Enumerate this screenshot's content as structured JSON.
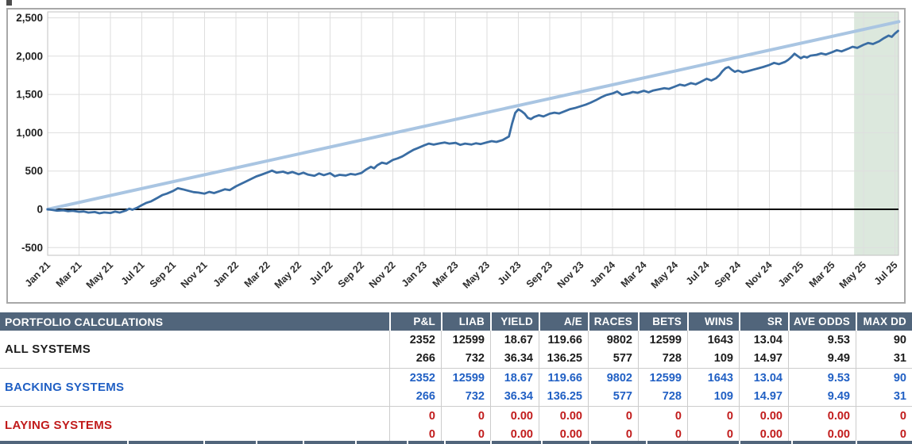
{
  "chart_data": {
    "type": "line",
    "title": "",
    "xlabel": "",
    "ylabel": "",
    "grid": true,
    "x_unit": "months since Jan 2021",
    "x_axis": {
      "tick_months": [
        0,
        2,
        4,
        6,
        8,
        10,
        12,
        14,
        16,
        18,
        20,
        22,
        24,
        26,
        28,
        30,
        32,
        34,
        36,
        38,
        40,
        42,
        44,
        46,
        48,
        50,
        52,
        54
      ],
      "tick_labels": [
        "Jan 21",
        "Mar 21",
        "May 21",
        "Jul 21",
        "Sep 21",
        "Nov 21",
        "Jan 22",
        "Mar 22",
        "May 22",
        "Jul 22",
        "Sep 22",
        "Nov 22",
        "Jan 23",
        "Mar 23",
        "May 23",
        "Jul 23",
        "Sep 23",
        "Nov 23",
        "Jan 24",
        "Mar 24",
        "May 24",
        "Jul 24",
        "Sep 24",
        "Nov 24",
        "Jan 25",
        "Mar 25",
        "May 25",
        "Jul 25"
      ]
    },
    "y_axis": {
      "tick_values": [
        2500,
        2000,
        1500,
        1000,
        500,
        0,
        -500
      ],
      "tick_labels": [
        "2,500",
        "2,000",
        "1,500",
        "1,000",
        "500",
        "0",
        "-500"
      ],
      "range_shown": [
        -620,
        2580
      ]
    },
    "zero_line_color": "#000000",
    "grid_color": "#dedede",
    "highlight_region": {
      "from_month": 51.4,
      "to_month": 54.25,
      "color": "#dce8dd"
    },
    "series": [
      {
        "name": "target-trend-line",
        "color": "#a9c5e2",
        "points": [
          [
            0,
            0
          ],
          [
            54.25,
            2450
          ]
        ]
      },
      {
        "name": "cumulative-pnl",
        "color": "#3a6da3",
        "points": [
          [
            0,
            0
          ],
          [
            0.3,
            -8
          ],
          [
            0.6,
            -18
          ],
          [
            1,
            -12
          ],
          [
            1.3,
            -25
          ],
          [
            1.6,
            -20
          ],
          [
            2,
            -32
          ],
          [
            2.3,
            -28
          ],
          [
            2.6,
            -42
          ],
          [
            3,
            -35
          ],
          [
            3.3,
            -52
          ],
          [
            3.6,
            -40
          ],
          [
            4,
            -48
          ],
          [
            4.3,
            -30
          ],
          [
            4.6,
            -42
          ],
          [
            5,
            -15
          ],
          [
            5.2,
            8
          ],
          [
            5.4,
            -5
          ],
          [
            5.7,
            20
          ],
          [
            6,
            55
          ],
          [
            6.3,
            85
          ],
          [
            6.6,
            105
          ],
          [
            7,
            150
          ],
          [
            7.3,
            185
          ],
          [
            7.6,
            205
          ],
          [
            8,
            240
          ],
          [
            8.3,
            275
          ],
          [
            8.6,
            262
          ],
          [
            9,
            240
          ],
          [
            9.3,
            225
          ],
          [
            9.6,
            218
          ],
          [
            10,
            205
          ],
          [
            10.3,
            228
          ],
          [
            10.6,
            212
          ],
          [
            11,
            240
          ],
          [
            11.3,
            262
          ],
          [
            11.6,
            250
          ],
          [
            12,
            300
          ],
          [
            12.3,
            330
          ],
          [
            12.6,
            360
          ],
          [
            13,
            400
          ],
          [
            13.3,
            430
          ],
          [
            13.6,
            450
          ],
          [
            14,
            480
          ],
          [
            14.3,
            505
          ],
          [
            14.6,
            478
          ],
          [
            15,
            492
          ],
          [
            15.3,
            470
          ],
          [
            15.6,
            488
          ],
          [
            16,
            458
          ],
          [
            16.3,
            478
          ],
          [
            16.6,
            452
          ],
          [
            17,
            438
          ],
          [
            17.3,
            468
          ],
          [
            17.6,
            446
          ],
          [
            18,
            472
          ],
          [
            18.3,
            432
          ],
          [
            18.6,
            450
          ],
          [
            19,
            442
          ],
          [
            19.3,
            462
          ],
          [
            19.6,
            452
          ],
          [
            20,
            475
          ],
          [
            20.3,
            520
          ],
          [
            20.6,
            555
          ],
          [
            20.8,
            535
          ],
          [
            21,
            575
          ],
          [
            21.3,
            610
          ],
          [
            21.6,
            595
          ],
          [
            22,
            645
          ],
          [
            22.3,
            665
          ],
          [
            22.6,
            690
          ],
          [
            23,
            740
          ],
          [
            23.3,
            775
          ],
          [
            23.6,
            800
          ],
          [
            24,
            835
          ],
          [
            24.3,
            858
          ],
          [
            24.6,
            845
          ],
          [
            25,
            862
          ],
          [
            25.3,
            872
          ],
          [
            25.6,
            858
          ],
          [
            26,
            868
          ],
          [
            26.3,
            842
          ],
          [
            26.6,
            858
          ],
          [
            27,
            846
          ],
          [
            27.3,
            862
          ],
          [
            27.6,
            852
          ],
          [
            28,
            875
          ],
          [
            28.3,
            890
          ],
          [
            28.6,
            880
          ],
          [
            29,
            905
          ],
          [
            29.2,
            928
          ],
          [
            29.4,
            950
          ],
          [
            29.6,
            1120
          ],
          [
            29.8,
            1260
          ],
          [
            30,
            1305
          ],
          [
            30.2,
            1282
          ],
          [
            30.4,
            1248
          ],
          [
            30.6,
            1195
          ],
          [
            30.8,
            1178
          ],
          [
            31,
            1205
          ],
          [
            31.3,
            1228
          ],
          [
            31.6,
            1212
          ],
          [
            32,
            1248
          ],
          [
            32.3,
            1262
          ],
          [
            32.6,
            1252
          ],
          [
            33,
            1285
          ],
          [
            33.3,
            1308
          ],
          [
            33.6,
            1322
          ],
          [
            34,
            1348
          ],
          [
            34.3,
            1368
          ],
          [
            34.6,
            1392
          ],
          [
            35,
            1432
          ],
          [
            35.3,
            1465
          ],
          [
            35.6,
            1492
          ],
          [
            36,
            1512
          ],
          [
            36.3,
            1538
          ],
          [
            36.6,
            1495
          ],
          [
            37,
            1512
          ],
          [
            37.3,
            1532
          ],
          [
            37.6,
            1522
          ],
          [
            38,
            1548
          ],
          [
            38.3,
            1528
          ],
          [
            38.6,
            1552
          ],
          [
            39,
            1568
          ],
          [
            39.3,
            1582
          ],
          [
            39.6,
            1572
          ],
          [
            40,
            1605
          ],
          [
            40.3,
            1628
          ],
          [
            40.6,
            1615
          ],
          [
            41,
            1648
          ],
          [
            41.3,
            1632
          ],
          [
            41.6,
            1662
          ],
          [
            42,
            1705
          ],
          [
            42.3,
            1682
          ],
          [
            42.6,
            1712
          ],
          [
            42.8,
            1748
          ],
          [
            43,
            1802
          ],
          [
            43.2,
            1842
          ],
          [
            43.4,
            1858
          ],
          [
            43.6,
            1822
          ],
          [
            43.8,
            1795
          ],
          [
            44,
            1812
          ],
          [
            44.3,
            1788
          ],
          [
            44.6,
            1802
          ],
          [
            45,
            1825
          ],
          [
            45.3,
            1842
          ],
          [
            45.6,
            1858
          ],
          [
            46,
            1885
          ],
          [
            46.3,
            1912
          ],
          [
            46.6,
            1895
          ],
          [
            47,
            1925
          ],
          [
            47.2,
            1952
          ],
          [
            47.4,
            1988
          ],
          [
            47.6,
            2032
          ],
          [
            47.8,
            2002
          ],
          [
            48,
            1972
          ],
          [
            48.2,
            1995
          ],
          [
            48.4,
            1982
          ],
          [
            48.6,
            2005
          ],
          [
            49,
            2018
          ],
          [
            49.3,
            2035
          ],
          [
            49.6,
            2022
          ],
          [
            50,
            2052
          ],
          [
            50.3,
            2078
          ],
          [
            50.6,
            2062
          ],
          [
            51,
            2095
          ],
          [
            51.3,
            2122
          ],
          [
            51.6,
            2108
          ],
          [
            52,
            2148
          ],
          [
            52.3,
            2172
          ],
          [
            52.6,
            2158
          ],
          [
            53,
            2195
          ],
          [
            53.3,
            2235
          ],
          [
            53.6,
            2268
          ],
          [
            53.8,
            2252
          ],
          [
            54,
            2295
          ],
          [
            54.2,
            2330
          ]
        ]
      }
    ]
  },
  "table": {
    "title": "PORTFOLIO CALCULATIONS",
    "header_bg": "#51657b",
    "columns": [
      "P&L",
      "LIAB",
      "YIELD",
      "A/E",
      "RACES",
      "BETS",
      "WINS",
      "SR",
      "AVE ODDS",
      "MAX DD"
    ],
    "rows": [
      {
        "label": "ALL SYSTEMS",
        "color": "#1c1c1c",
        "line1": [
          "2352",
          "12599",
          "18.67",
          "119.66",
          "9802",
          "12599",
          "1643",
          "13.04",
          "9.53",
          "90"
        ],
        "line2": [
          "266",
          "732",
          "36.34",
          "136.25",
          "577",
          "728",
          "109",
          "14.97",
          "9.49",
          "31"
        ]
      },
      {
        "label": "BACKING SYSTEMS",
        "color": "#2160c4",
        "line1": [
          "2352",
          "12599",
          "18.67",
          "119.66",
          "9802",
          "12599",
          "1643",
          "13.04",
          "9.53",
          "90"
        ],
        "line2": [
          "266",
          "732",
          "36.34",
          "136.25",
          "577",
          "728",
          "109",
          "14.97",
          "9.49",
          "31"
        ]
      },
      {
        "label": "LAYING SYSTEMS",
        "color": "#c11b1b",
        "line1": [
          "0",
          "0",
          "0.00",
          "0.00",
          "0",
          "0",
          "0",
          "0.00",
          "0.00",
          "0"
        ],
        "line2": [
          "0",
          "0",
          "0.00",
          "0.00",
          "0",
          "0",
          "0",
          "0.00",
          "0.00",
          "0"
        ]
      }
    ]
  }
}
